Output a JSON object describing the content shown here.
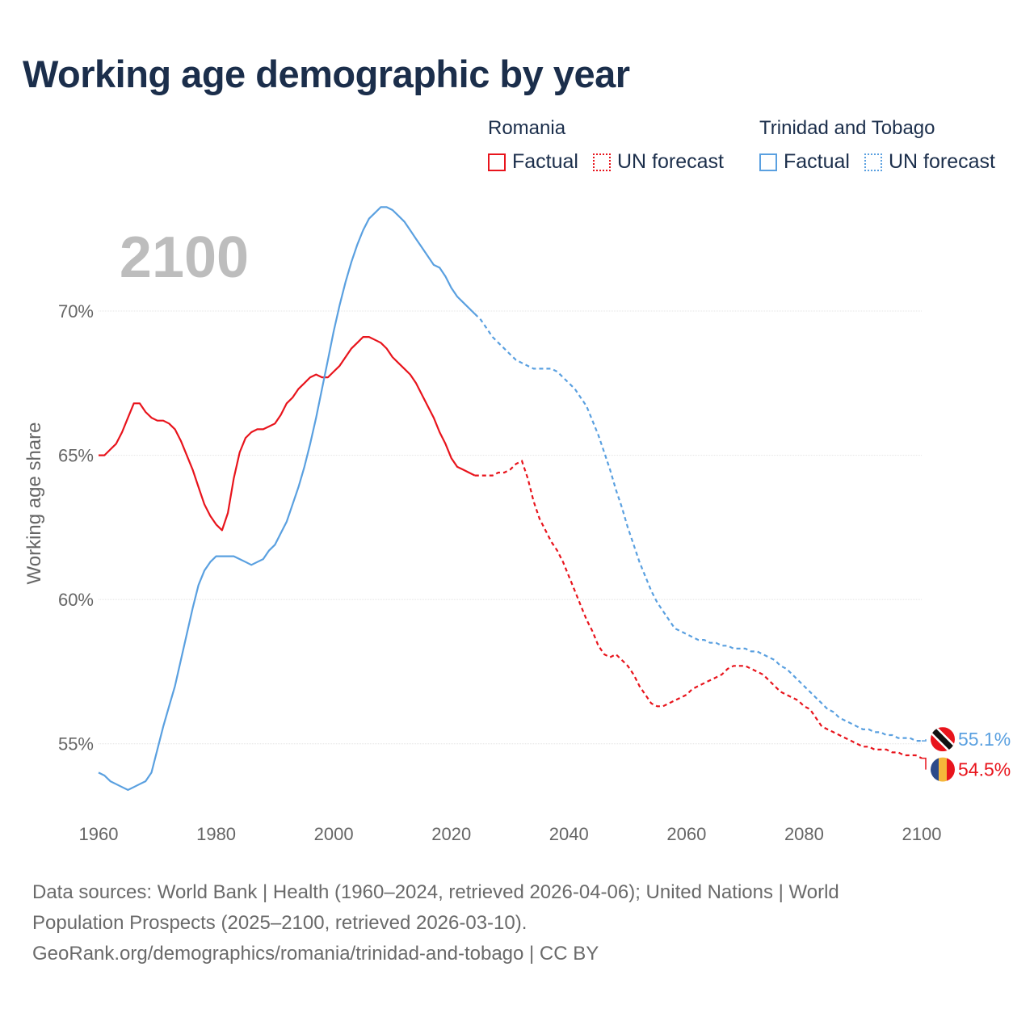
{
  "title": "Working age demographic by year",
  "legend": {
    "groups": [
      {
        "country": "Romania",
        "color": "#e8141c",
        "factual_label": "Factual",
        "forecast_label": "UN forecast"
      },
      {
        "country": "Trinidad and Tobago",
        "color": "#5aa0e0",
        "factual_label": "Factual",
        "forecast_label": "UN forecast"
      }
    ]
  },
  "year_watermark": "2100",
  "sources": {
    "line1": "Data sources: World Bank | Health (1960–2024, retrieved 2026-04-06); United Nations | World",
    "line2": "Population Prospects (2025–2100, retrieved 2026-03-10).",
    "line3": "GeoRank.org/demographics/romania/trinidad-and-tobago | CC BY"
  },
  "chart_data": {
    "type": "line",
    "title": "Working age demographic by year",
    "xlabel": "",
    "ylabel": "Working age share",
    "xlim": [
      1960,
      2100
    ],
    "ylim": [
      52.5,
      73.5
    ],
    "x_ticks": [
      "1960",
      "1980",
      "2000",
      "2020",
      "2040",
      "2060",
      "2080",
      "2100"
    ],
    "y_ticks": [
      {
        "value": 55,
        "label": "55%"
      },
      {
        "value": 60,
        "label": "60%"
      },
      {
        "value": 65,
        "label": "65%"
      },
      {
        "value": 70,
        "label": "70%"
      }
    ],
    "grid": true,
    "factual_end_year": 2024,
    "series": [
      {
        "name": "Romania",
        "color": "#e8141c",
        "end_label": "54.5%",
        "points": [
          [
            1960,
            65.0
          ],
          [
            1961,
            65.0
          ],
          [
            1962,
            65.2
          ],
          [
            1963,
            65.4
          ],
          [
            1964,
            65.8
          ],
          [
            1965,
            66.3
          ],
          [
            1966,
            66.8
          ],
          [
            1967,
            66.8
          ],
          [
            1968,
            66.5
          ],
          [
            1969,
            66.3
          ],
          [
            1970,
            66.2
          ],
          [
            1971,
            66.2
          ],
          [
            1972,
            66.1
          ],
          [
            1973,
            65.9
          ],
          [
            1974,
            65.5
          ],
          [
            1975,
            65.0
          ],
          [
            1976,
            64.5
          ],
          [
            1977,
            63.9
          ],
          [
            1978,
            63.3
          ],
          [
            1979,
            62.9
          ],
          [
            1980,
            62.6
          ],
          [
            1981,
            62.4
          ],
          [
            1982,
            63.0
          ],
          [
            1983,
            64.2
          ],
          [
            1984,
            65.1
          ],
          [
            1985,
            65.6
          ],
          [
            1986,
            65.8
          ],
          [
            1987,
            65.9
          ],
          [
            1988,
            65.9
          ],
          [
            1989,
            66.0
          ],
          [
            1990,
            66.1
          ],
          [
            1991,
            66.4
          ],
          [
            1992,
            66.8
          ],
          [
            1993,
            67.0
          ],
          [
            1994,
            67.3
          ],
          [
            1995,
            67.5
          ],
          [
            1996,
            67.7
          ],
          [
            1997,
            67.8
          ],
          [
            1998,
            67.7
          ],
          [
            1999,
            67.7
          ],
          [
            2000,
            67.9
          ],
          [
            2001,
            68.1
          ],
          [
            2002,
            68.4
          ],
          [
            2003,
            68.7
          ],
          [
            2004,
            68.9
          ],
          [
            2005,
            69.1
          ],
          [
            2006,
            69.1
          ],
          [
            2007,
            69.0
          ],
          [
            2008,
            68.9
          ],
          [
            2009,
            68.7
          ],
          [
            2010,
            68.4
          ],
          [
            2011,
            68.2
          ],
          [
            2012,
            68.0
          ],
          [
            2013,
            67.8
          ],
          [
            2014,
            67.5
          ],
          [
            2015,
            67.1
          ],
          [
            2016,
            66.7
          ],
          [
            2017,
            66.3
          ],
          [
            2018,
            65.8
          ],
          [
            2019,
            65.4
          ],
          [
            2020,
            64.9
          ],
          [
            2021,
            64.6
          ],
          [
            2022,
            64.5
          ],
          [
            2023,
            64.4
          ],
          [
            2024,
            64.3
          ],
          [
            2025,
            64.3
          ],
          [
            2026,
            64.3
          ],
          [
            2027,
            64.3
          ],
          [
            2028,
            64.4
          ],
          [
            2029,
            64.4
          ],
          [
            2030,
            64.5
          ],
          [
            2031,
            64.7
          ],
          [
            2032,
            64.8
          ],
          [
            2033,
            64.2
          ],
          [
            2034,
            63.4
          ],
          [
            2035,
            62.8
          ],
          [
            2036,
            62.4
          ],
          [
            2037,
            62.0
          ],
          [
            2038,
            61.7
          ],
          [
            2039,
            61.3
          ],
          [
            2040,
            60.8
          ],
          [
            2041,
            60.3
          ],
          [
            2042,
            59.8
          ],
          [
            2043,
            59.3
          ],
          [
            2044,
            58.9
          ],
          [
            2045,
            58.4
          ],
          [
            2046,
            58.1
          ],
          [
            2047,
            58.0
          ],
          [
            2048,
            58.1
          ],
          [
            2049,
            57.9
          ],
          [
            2050,
            57.7
          ],
          [
            2051,
            57.4
          ],
          [
            2052,
            57.0
          ],
          [
            2053,
            56.7
          ],
          [
            2054,
            56.4
          ],
          [
            2055,
            56.3
          ],
          [
            2056,
            56.3
          ],
          [
            2057,
            56.4
          ],
          [
            2058,
            56.5
          ],
          [
            2059,
            56.6
          ],
          [
            2060,
            56.7
          ],
          [
            2061,
            56.9
          ],
          [
            2062,
            57.0
          ],
          [
            2063,
            57.1
          ],
          [
            2064,
            57.2
          ],
          [
            2065,
            57.3
          ],
          [
            2066,
            57.4
          ],
          [
            2067,
            57.6
          ],
          [
            2068,
            57.7
          ],
          [
            2069,
            57.7
          ],
          [
            2070,
            57.7
          ],
          [
            2071,
            57.6
          ],
          [
            2072,
            57.5
          ],
          [
            2073,
            57.4
          ],
          [
            2074,
            57.2
          ],
          [
            2075,
            57.0
          ],
          [
            2076,
            56.8
          ],
          [
            2077,
            56.7
          ],
          [
            2078,
            56.6
          ],
          [
            2079,
            56.5
          ],
          [
            2080,
            56.3
          ],
          [
            2081,
            56.2
          ],
          [
            2082,
            55.9
          ],
          [
            2083,
            55.6
          ],
          [
            2084,
            55.5
          ],
          [
            2085,
            55.4
          ],
          [
            2086,
            55.3
          ],
          [
            2087,
            55.2
          ],
          [
            2088,
            55.1
          ],
          [
            2089,
            55.0
          ],
          [
            2090,
            54.9
          ],
          [
            2091,
            54.9
          ],
          [
            2092,
            54.8
          ],
          [
            2093,
            54.8
          ],
          [
            2094,
            54.8
          ],
          [
            2095,
            54.7
          ],
          [
            2096,
            54.7
          ],
          [
            2097,
            54.6
          ],
          [
            2098,
            54.6
          ],
          [
            2099,
            54.6
          ],
          [
            2100,
            54.5
          ]
        ]
      },
      {
        "name": "Trinidad and Tobago",
        "color": "#5aa0e0",
        "end_label": "55.1%",
        "points": [
          [
            1960,
            54.0
          ],
          [
            1961,
            53.9
          ],
          [
            1962,
            53.7
          ],
          [
            1963,
            53.6
          ],
          [
            1964,
            53.5
          ],
          [
            1965,
            53.4
          ],
          [
            1966,
            53.5
          ],
          [
            1967,
            53.6
          ],
          [
            1968,
            53.7
          ],
          [
            1969,
            54.0
          ],
          [
            1970,
            54.8
          ],
          [
            1971,
            55.6
          ],
          [
            1972,
            56.3
          ],
          [
            1973,
            57.0
          ],
          [
            1974,
            57.9
          ],
          [
            1975,
            58.8
          ],
          [
            1976,
            59.7
          ],
          [
            1977,
            60.5
          ],
          [
            1978,
            61.0
          ],
          [
            1979,
            61.3
          ],
          [
            1980,
            61.5
          ],
          [
            1981,
            61.5
          ],
          [
            1982,
            61.5
          ],
          [
            1983,
            61.5
          ],
          [
            1984,
            61.4
          ],
          [
            1985,
            61.3
          ],
          [
            1986,
            61.2
          ],
          [
            1987,
            61.3
          ],
          [
            1988,
            61.4
          ],
          [
            1989,
            61.7
          ],
          [
            1990,
            61.9
          ],
          [
            1991,
            62.3
          ],
          [
            1992,
            62.7
          ],
          [
            1993,
            63.3
          ],
          [
            1994,
            63.9
          ],
          [
            1995,
            64.6
          ],
          [
            1996,
            65.4
          ],
          [
            1997,
            66.3
          ],
          [
            1998,
            67.3
          ],
          [
            1999,
            68.3
          ],
          [
            2000,
            69.3
          ],
          [
            2001,
            70.2
          ],
          [
            2002,
            71.0
          ],
          [
            2003,
            71.7
          ],
          [
            2004,
            72.3
          ],
          [
            2005,
            72.8
          ],
          [
            2006,
            73.2
          ],
          [
            2007,
            73.4
          ],
          [
            2008,
            73.6
          ],
          [
            2009,
            73.6
          ],
          [
            2010,
            73.5
          ],
          [
            2011,
            73.3
          ],
          [
            2012,
            73.1
          ],
          [
            2013,
            72.8
          ],
          [
            2014,
            72.5
          ],
          [
            2015,
            72.2
          ],
          [
            2016,
            71.9
          ],
          [
            2017,
            71.6
          ],
          [
            2018,
            71.5
          ],
          [
            2019,
            71.2
          ],
          [
            2020,
            70.8
          ],
          [
            2021,
            70.5
          ],
          [
            2022,
            70.3
          ],
          [
            2023,
            70.1
          ],
          [
            2024,
            69.9
          ],
          [
            2025,
            69.7
          ],
          [
            2026,
            69.4
          ],
          [
            2027,
            69.1
          ],
          [
            2028,
            68.9
          ],
          [
            2029,
            68.7
          ],
          [
            2030,
            68.5
          ],
          [
            2031,
            68.3
          ],
          [
            2032,
            68.2
          ],
          [
            2033,
            68.1
          ],
          [
            2034,
            68.0
          ],
          [
            2035,
            68.0
          ],
          [
            2036,
            68.0
          ],
          [
            2037,
            68.0
          ],
          [
            2038,
            67.9
          ],
          [
            2039,
            67.7
          ],
          [
            2040,
            67.5
          ],
          [
            2041,
            67.3
          ],
          [
            2042,
            67.0
          ],
          [
            2043,
            66.7
          ],
          [
            2044,
            66.2
          ],
          [
            2045,
            65.7
          ],
          [
            2046,
            65.1
          ],
          [
            2047,
            64.5
          ],
          [
            2048,
            63.8
          ],
          [
            2049,
            63.2
          ],
          [
            2050,
            62.5
          ],
          [
            2051,
            61.9
          ],
          [
            2052,
            61.3
          ],
          [
            2053,
            60.8
          ],
          [
            2054,
            60.3
          ],
          [
            2055,
            59.9
          ],
          [
            2056,
            59.6
          ],
          [
            2057,
            59.3
          ],
          [
            2058,
            59.0
          ],
          [
            2059,
            58.9
          ],
          [
            2060,
            58.8
          ],
          [
            2061,
            58.7
          ],
          [
            2062,
            58.6
          ],
          [
            2063,
            58.6
          ],
          [
            2064,
            58.5
          ],
          [
            2065,
            58.5
          ],
          [
            2066,
            58.4
          ],
          [
            2067,
            58.4
          ],
          [
            2068,
            58.3
          ],
          [
            2069,
            58.3
          ],
          [
            2070,
            58.3
          ],
          [
            2071,
            58.2
          ],
          [
            2072,
            58.2
          ],
          [
            2073,
            58.1
          ],
          [
            2074,
            58.0
          ],
          [
            2075,
            57.9
          ],
          [
            2076,
            57.7
          ],
          [
            2077,
            57.6
          ],
          [
            2078,
            57.4
          ],
          [
            2079,
            57.2
          ],
          [
            2080,
            57.0
          ],
          [
            2081,
            56.8
          ],
          [
            2082,
            56.6
          ],
          [
            2083,
            56.4
          ],
          [
            2084,
            56.2
          ],
          [
            2085,
            56.1
          ],
          [
            2086,
            55.9
          ],
          [
            2087,
            55.8
          ],
          [
            2088,
            55.7
          ],
          [
            2089,
            55.6
          ],
          [
            2090,
            55.5
          ],
          [
            2091,
            55.5
          ],
          [
            2092,
            55.4
          ],
          [
            2093,
            55.4
          ],
          [
            2094,
            55.3
          ],
          [
            2095,
            55.3
          ],
          [
            2096,
            55.2
          ],
          [
            2097,
            55.2
          ],
          [
            2098,
            55.2
          ],
          [
            2099,
            55.1
          ],
          [
            2100,
            55.1
          ]
        ]
      }
    ]
  }
}
